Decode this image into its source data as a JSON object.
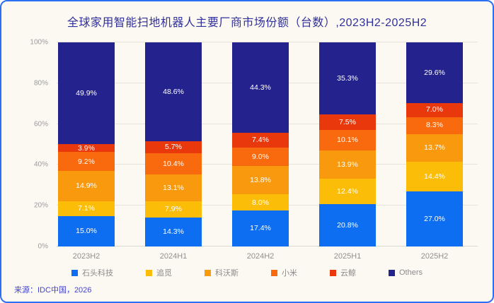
{
  "title": "全球家用智能扫地机器人主要厂商市场份额（台数）,2023H2-2025H2",
  "footer": {
    "source": "来源：IDC中国，2026"
  },
  "colors": {
    "frame_border": "#2D6FF2",
    "background": "#FCF9F3",
    "title_text": "#30309A",
    "grid": "#E8E4DD",
    "axis_text": "#9B9B9B",
    "legend_text": "#8A8A8A",
    "footer_text": "#4343C9",
    "segment_label": "#FFFFFF"
  },
  "chart_data": {
    "type": "bar",
    "stacked": true,
    "title": "全球家用智能扫地机器人主要厂商市场份额（台数）,2023H2-2025H2",
    "categories": [
      "2023H2",
      "2024H1",
      "2024H2",
      "2025H1",
      "2025H2"
    ],
    "series": [
      {
        "name": "石头科技",
        "color": "#0D6EF2",
        "values": [
          15.0,
          14.3,
          17.4,
          20.8,
          27.0
        ]
      },
      {
        "name": "追觅",
        "color": "#FBBD08",
        "values": [
          7.1,
          7.9,
          8.0,
          12.4,
          14.4
        ]
      },
      {
        "name": "科沃斯",
        "color": "#F9990D",
        "values": [
          14.9,
          13.1,
          13.8,
          13.9,
          13.7
        ]
      },
      {
        "name": "小米",
        "color": "#F9690D",
        "values": [
          9.2,
          10.4,
          9.0,
          10.1,
          8.3
        ]
      },
      {
        "name": "云鲸",
        "color": "#EA380D",
        "values": [
          3.9,
          5.7,
          7.4,
          7.5,
          7.0
        ]
      },
      {
        "name": "Others",
        "color": "#24228C",
        "values": [
          49.9,
          48.6,
          44.3,
          35.3,
          29.6
        ]
      }
    ],
    "xlabel": "",
    "ylabel": "",
    "ylim": [
      0,
      100
    ],
    "yticks": [
      0,
      20,
      40,
      60,
      80,
      100
    ],
    "ytick_suffix": "%",
    "value_suffix": "%",
    "value_decimals": 1,
    "grid": true,
    "legend_position": "bottom"
  }
}
